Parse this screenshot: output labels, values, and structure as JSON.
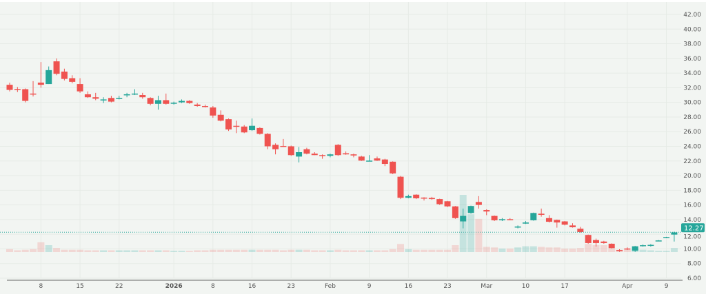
{
  "chart_data": {
    "type": "candlestick",
    "title": "",
    "xlabel": "",
    "ylabel": "",
    "ylim": [
      6,
      42
    ],
    "y_ticks": [
      "42.00",
      "40.00",
      "38.00",
      "36.00",
      "34.00",
      "32.00",
      "30.00",
      "28.00",
      "26.00",
      "24.00",
      "22.00",
      "20.00",
      "18.00",
      "16.00",
      "14.00",
      "12.00",
      "10.00",
      "8.00",
      "6.00"
    ],
    "x_ticks": [
      {
        "label": "8",
        "index": 4
      },
      {
        "label": "15",
        "index": 9
      },
      {
        "label": "22",
        "index": 14
      },
      {
        "label": "2026",
        "index": 21
      },
      {
        "label": "8",
        "index": 26
      },
      {
        "label": "16",
        "index": 31
      },
      {
        "label": "23",
        "index": 36
      },
      {
        "label": "Feb",
        "index": 41
      },
      {
        "label": "9",
        "index": 46
      },
      {
        "label": "16",
        "index": 51
      },
      {
        "label": "23",
        "index": 56
      },
      {
        "label": "Mar",
        "index": 61
      },
      {
        "label": "10",
        "index": 66
      },
      {
        "label": "17",
        "index": 71
      },
      {
        "label": "Apr",
        "index": 79
      },
      {
        "label": "9",
        "index": 84
      }
    ],
    "grid": true,
    "last_price": "12.27",
    "colors": {
      "up": "#26a69a",
      "down": "#ef5350",
      "background": "#f2f5f2",
      "grid": "#e6ebe6"
    },
    "volume_note_relative": true,
    "candles": [
      [
        32.4,
        32.7,
        31.5,
        31.7,
        5
      ],
      [
        31.8,
        32.1,
        31.4,
        31.75,
        3
      ],
      [
        31.8,
        31.9,
        30.0,
        30.2,
        4
      ],
      [
        31.2,
        32.9,
        30.8,
        31.1,
        5
      ],
      [
        32.7,
        35.5,
        32.0,
        32.4,
        17
      ],
      [
        32.5,
        34.9,
        32.5,
        34.4,
        12
      ],
      [
        35.6,
        36.0,
        33.7,
        33.9,
        7
      ],
      [
        34.2,
        34.6,
        33.0,
        33.2,
        4
      ],
      [
        33.3,
        33.7,
        32.6,
        32.8,
        4
      ],
      [
        32.5,
        33.3,
        31.3,
        31.5,
        4
      ],
      [
        31.1,
        31.5,
        30.6,
        30.7,
        3
      ],
      [
        30.7,
        31.3,
        30.3,
        30.5,
        3
      ],
      [
        30.3,
        30.7,
        29.9,
        30.4,
        3
      ],
      [
        30.6,
        30.9,
        30.0,
        30.1,
        3
      ],
      [
        30.5,
        30.9,
        30.4,
        30.6,
        3
      ],
      [
        31.0,
        31.3,
        30.7,
        31.1,
        3
      ],
      [
        31.1,
        31.8,
        31.0,
        31.2,
        3
      ],
      [
        31.0,
        31.3,
        30.5,
        30.7,
        3
      ],
      [
        30.6,
        30.7,
        29.6,
        29.8,
        3
      ],
      [
        29.8,
        30.9,
        29.0,
        30.3,
        3
      ],
      [
        30.3,
        31.2,
        29.7,
        29.8,
        3
      ],
      [
        29.85,
        30.1,
        29.7,
        29.95,
        2
      ],
      [
        30.0,
        30.4,
        29.9,
        30.2,
        2
      ],
      [
        30.2,
        30.3,
        29.8,
        29.9,
        2
      ],
      [
        29.7,
        29.9,
        29.4,
        29.5,
        3
      ],
      [
        29.5,
        29.7,
        29.3,
        29.4,
        3
      ],
      [
        29.3,
        29.5,
        27.9,
        28.2,
        4
      ],
      [
        28.3,
        28.9,
        27.4,
        27.5,
        4
      ],
      [
        27.7,
        27.8,
        26.1,
        26.3,
        4
      ],
      [
        26.8,
        27.5,
        25.8,
        26.7,
        4
      ],
      [
        26.7,
        26.9,
        25.8,
        25.9,
        4
      ],
      [
        26.2,
        27.8,
        26.1,
        26.8,
        4
      ],
      [
        26.5,
        26.6,
        25.6,
        25.7,
        4
      ],
      [
        25.7,
        25.8,
        23.6,
        24.0,
        4
      ],
      [
        24.2,
        24.4,
        22.9,
        23.6,
        4
      ],
      [
        24.05,
        25.0,
        23.9,
        24.0,
        3
      ],
      [
        24.0,
        24.1,
        22.7,
        22.8,
        4
      ],
      [
        22.6,
        23.9,
        21.8,
        23.2,
        4
      ],
      [
        23.6,
        23.8,
        22.9,
        23.0,
        4
      ],
      [
        23.0,
        23.2,
        22.8,
        22.8,
        3
      ],
      [
        22.8,
        22.9,
        22.3,
        22.7,
        3
      ],
      [
        22.7,
        23.0,
        22.5,
        22.9,
        3
      ],
      [
        24.2,
        24.3,
        22.7,
        22.8,
        4
      ],
      [
        23.05,
        23.3,
        22.85,
        22.9,
        3
      ],
      [
        22.9,
        23.0,
        22.5,
        22.75,
        3
      ],
      [
        22.6,
        22.7,
        22.0,
        22.05,
        3
      ],
      [
        22.0,
        22.8,
        22.0,
        22.05,
        3
      ],
      [
        22.35,
        22.6,
        22.0,
        22.05,
        3
      ],
      [
        22.2,
        22.3,
        21.3,
        21.6,
        3
      ],
      [
        21.9,
        21.95,
        20.2,
        20.3,
        5
      ],
      [
        19.85,
        19.95,
        16.8,
        16.97,
        14
      ],
      [
        16.97,
        17.4,
        16.9,
        17.2,
        5
      ],
      [
        17.4,
        17.45,
        16.8,
        16.9,
        4
      ],
      [
        17.0,
        17.05,
        16.6,
        16.9,
        4
      ],
      [
        16.95,
        17.1,
        16.7,
        16.8,
        4
      ],
      [
        16.8,
        16.85,
        16.0,
        16.1,
        4
      ],
      [
        16.5,
        16.55,
        15.7,
        15.8,
        4
      ],
      [
        15.8,
        15.85,
        14.1,
        14.2,
        12
      ],
      [
        13.75,
        15.5,
        12.8,
        14.5,
        100
      ],
      [
        14.9,
        15.9,
        14.8,
        15.85,
        66
      ],
      [
        16.4,
        17.2,
        15.5,
        16.0,
        58
      ],
      [
        15.3,
        15.4,
        14.6,
        15.1,
        9
      ],
      [
        14.5,
        14.55,
        13.8,
        13.9,
        8
      ],
      [
        13.9,
        14.2,
        13.8,
        14.05,
        6
      ],
      [
        14.05,
        14.2,
        13.9,
        14.0,
        6
      ],
      [
        12.95,
        13.2,
        12.8,
        13.05,
        8
      ],
      [
        13.45,
        13.8,
        13.4,
        13.6,
        10
      ],
      [
        13.9,
        14.95,
        13.85,
        14.9,
        10
      ],
      [
        14.8,
        15.5,
        14.4,
        14.65,
        9
      ],
      [
        14.2,
        14.6,
        13.6,
        13.7,
        8
      ],
      [
        13.95,
        14.0,
        12.9,
        13.6,
        8
      ],
      [
        13.75,
        13.8,
        13.2,
        13.3,
        6
      ],
      [
        13.2,
        13.5,
        12.9,
        12.95,
        6
      ],
      [
        12.75,
        13.0,
        12.2,
        12.3,
        7
      ],
      [
        11.9,
        11.95,
        10.7,
        10.8,
        14
      ],
      [
        11.2,
        11.4,
        10.3,
        10.8,
        12
      ],
      [
        11.0,
        11.1,
        10.7,
        10.8,
        12
      ],
      [
        10.7,
        10.75,
        10.05,
        10.1,
        6
      ],
      [
        9.85,
        9.95,
        9.6,
        9.7,
        4
      ],
      [
        10.05,
        10.2,
        9.85,
        9.93,
        4
      ],
      [
        9.75,
        10.4,
        9.6,
        10.35,
        5
      ],
      [
        10.45,
        10.6,
        10.3,
        10.5,
        4
      ],
      [
        10.5,
        10.65,
        10.3,
        10.55,
        3
      ],
      [
        11.1,
        11.2,
        11.1,
        11.15,
        2
      ],
      [
        11.55,
        11.65,
        11.5,
        11.6,
        2
      ],
      [
        11.95,
        12.35,
        11.0,
        12.25,
        7
      ]
    ]
  }
}
